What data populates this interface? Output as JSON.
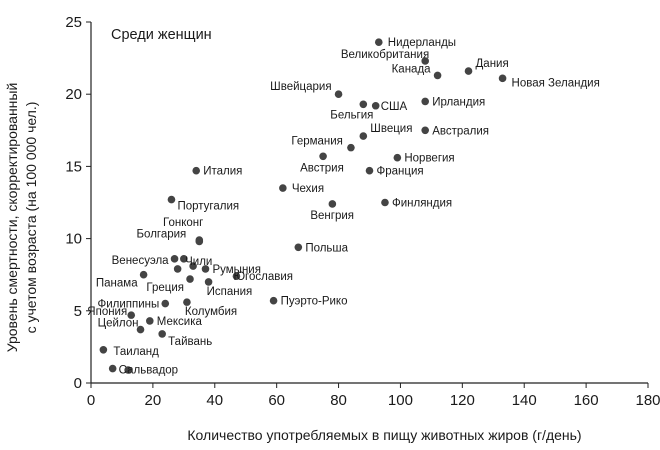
{
  "chart_data": {
    "type": "scatter",
    "title": "",
    "annotation": "Среди женщин",
    "xlabel": "Количество употребляемых в пищу животных жиров (г/день)",
    "ylabel_lines": [
      "Уровень смертности, скорректированный",
      "с учетом возраста (на 100 000 чел.)"
    ],
    "xlim": [
      0,
      180
    ],
    "ylim": [
      0,
      25
    ],
    "x_ticks": [
      0,
      20,
      40,
      60,
      80,
      100,
      120,
      140,
      160,
      180
    ],
    "y_ticks": [
      0,
      5,
      10,
      15,
      20,
      25
    ],
    "grid": false,
    "point_color": "#444444",
    "points": [
      {
        "label": "Сальвадор",
        "x": 7,
        "y": 1.0
      },
      {
        "label": "",
        "x": 12,
        "y": 0.9
      },
      {
        "label": "Таиланд",
        "x": 4,
        "y": 2.3
      },
      {
        "label": "Цейлон",
        "x": 16,
        "y": 3.7
      },
      {
        "label": "Тайвань",
        "x": 23,
        "y": 3.4
      },
      {
        "label": "Япония",
        "x": 13,
        "y": 4.7
      },
      {
        "label": "Мексика",
        "x": 19,
        "y": 4.3
      },
      {
        "label": "Филиппины",
        "x": 24,
        "y": 5.5
      },
      {
        "label": "Колумбия",
        "x": 31,
        "y": 5.6
      },
      {
        "label": "Пуэрто-Рико",
        "x": 59,
        "y": 5.7
      },
      {
        "label": "Панама",
        "x": 17,
        "y": 7.5
      },
      {
        "label": "Греция",
        "x": 32,
        "y": 7.2
      },
      {
        "label": "Испания",
        "x": 38,
        "y": 7.0
      },
      {
        "label": "Венесуэла",
        "x": 27,
        "y": 8.6
      },
      {
        "label": "",
        "x": 30,
        "y": 8.6
      },
      {
        "label": "",
        "x": 28,
        "y": 7.9
      },
      {
        "label": "Чили",
        "x": 33,
        "y": 8.1
      },
      {
        "label": "Румыния",
        "x": 37,
        "y": 7.9
      },
      {
        "label": "Болгария",
        "x": 35,
        "y": 9.8
      },
      {
        "label": "Югославия",
        "x": 47,
        "y": 7.4
      },
      {
        "label": "Гонконг",
        "x": 35,
        "y": 9.9
      },
      {
        "label": "Португалия",
        "x": 26,
        "y": 12.7
      },
      {
        "label": "Италия",
        "x": 34,
        "y": 14.7
      },
      {
        "label": "Польша",
        "x": 67,
        "y": 9.4
      },
      {
        "label": "Венгрия",
        "x": 78,
        "y": 12.4
      },
      {
        "label": "Чехия",
        "x": 62,
        "y": 13.5
      },
      {
        "label": "Австрия",
        "x": 75,
        "y": 15.7
      },
      {
        "label": "Германия",
        "x": 84,
        "y": 16.3
      },
      {
        "label": "Франция",
        "x": 90,
        "y": 14.7
      },
      {
        "label": "Финляндия",
        "x": 95,
        "y": 12.5
      },
      {
        "label": "Норвегия",
        "x": 99,
        "y": 15.6
      },
      {
        "label": "Швеция",
        "x": 88,
        "y": 17.1
      },
      {
        "label": "Австралия",
        "x": 108,
        "y": 17.5
      },
      {
        "label": "Бельгия",
        "x": 88,
        "y": 19.3
      },
      {
        "label": "США",
        "x": 92,
        "y": 19.2
      },
      {
        "label": "Швейцария",
        "x": 80,
        "y": 20.0
      },
      {
        "label": "Ирландия",
        "x": 108,
        "y": 19.5
      },
      {
        "label": "Канада",
        "x": 112,
        "y": 21.3
      },
      {
        "label": "Великобритания",
        "x": 108,
        "y": 22.3
      },
      {
        "label": "Нидерланды",
        "x": 93,
        "y": 23.6
      },
      {
        "label": "Дания",
        "x": 122,
        "y": 21.6
      },
      {
        "label": "Новая Зеландия",
        "x": 133,
        "y": 21.1
      }
    ]
  }
}
